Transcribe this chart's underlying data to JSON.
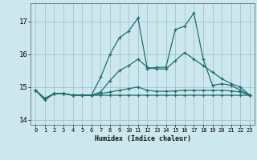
{
  "xlabel": "Humidex (Indice chaleur)",
  "xlim": [
    -0.5,
    23.5
  ],
  "ylim": [
    13.85,
    17.55
  ],
  "yticks": [
    14,
    15,
    16,
    17
  ],
  "xticks": [
    0,
    1,
    2,
    3,
    4,
    5,
    6,
    7,
    8,
    9,
    10,
    11,
    12,
    13,
    14,
    15,
    16,
    17,
    18,
    19,
    20,
    21,
    22,
    23
  ],
  "bg_color": "#cce8ee",
  "grid_color": "#9bbec8",
  "line_color": "#1e7070",
  "lines": [
    {
      "x": [
        0,
        1,
        2,
        3,
        4,
        5,
        6,
        7,
        8,
        9,
        10,
        11,
        12,
        13,
        14,
        15,
        16,
        17,
        18,
        19,
        20,
        21,
        22,
        23
      ],
      "y": [
        14.9,
        14.6,
        14.8,
        14.8,
        14.75,
        14.75,
        14.75,
        15.3,
        16.0,
        16.5,
        16.7,
        17.1,
        15.55,
        15.6,
        15.6,
        16.75,
        16.85,
        17.25,
        15.85,
        15.05,
        15.1,
        15.05,
        14.9,
        14.75
      ]
    },
    {
      "x": [
        0,
        1,
        2,
        3,
        4,
        5,
        6,
        7,
        8,
        9,
        10,
        11,
        12,
        13,
        14,
        15,
        16,
        17,
        18,
        19,
        20,
        21,
        22,
        23
      ],
      "y": [
        14.9,
        14.65,
        14.8,
        14.8,
        14.75,
        14.75,
        14.75,
        14.85,
        15.2,
        15.5,
        15.65,
        15.85,
        15.6,
        15.55,
        15.55,
        15.8,
        16.05,
        15.85,
        15.65,
        15.45,
        15.25,
        15.1,
        15.0,
        14.75
      ]
    },
    {
      "x": [
        0,
        1,
        2,
        3,
        4,
        5,
        6,
        7,
        8,
        9,
        10,
        11,
        12,
        13,
        14,
        15,
        16,
        17,
        18,
        19,
        20,
        21,
        22,
        23
      ],
      "y": [
        14.9,
        14.65,
        14.8,
        14.8,
        14.75,
        14.75,
        14.75,
        14.8,
        14.85,
        14.9,
        14.95,
        15.0,
        14.9,
        14.87,
        14.87,
        14.88,
        14.9,
        14.9,
        14.9,
        14.9,
        14.9,
        14.88,
        14.85,
        14.75
      ]
    },
    {
      "x": [
        0,
        1,
        2,
        3,
        4,
        5,
        6,
        7,
        8,
        9,
        10,
        11,
        12,
        13,
        14,
        15,
        16,
        17,
        18,
        19,
        20,
        21,
        22,
        23
      ],
      "y": [
        14.9,
        14.65,
        14.8,
        14.8,
        14.75,
        14.75,
        14.75,
        14.75,
        14.75,
        14.75,
        14.75,
        14.75,
        14.75,
        14.75,
        14.75,
        14.75,
        14.75,
        14.75,
        14.75,
        14.75,
        14.75,
        14.75,
        14.75,
        14.75
      ]
    }
  ]
}
